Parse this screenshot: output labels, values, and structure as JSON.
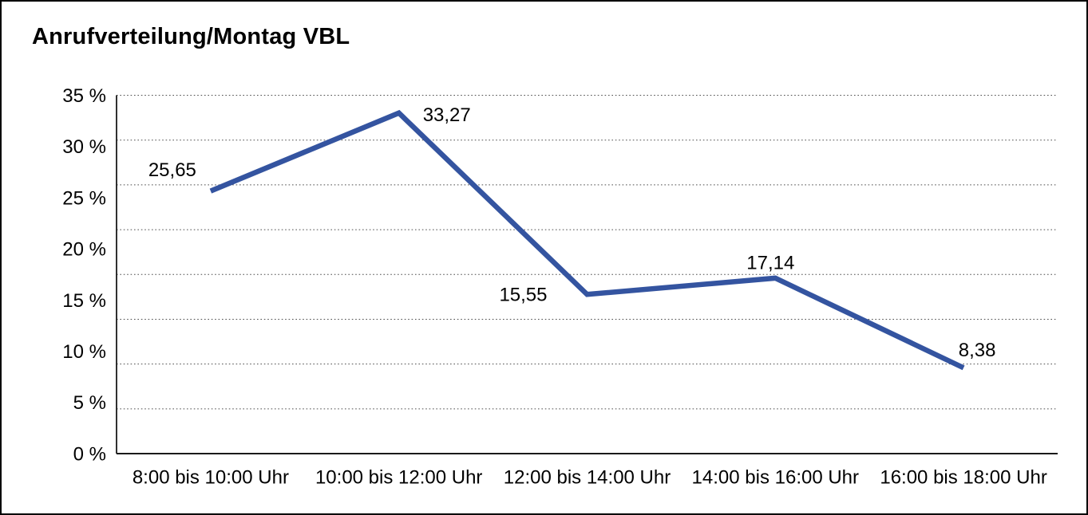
{
  "page": {
    "title": "Anrufverteilung/Montag VBL"
  },
  "chart_data": {
    "type": "line",
    "title": "Anrufverteilung/Montag VBL",
    "categories": [
      "8:00 bis 10:00 Uhr",
      "10:00 bis 12:00 Uhr",
      "12:00 bis 14:00 Uhr",
      "14:00 bis 16:00 Uhr",
      "16:00 bis 18:00 Uhr"
    ],
    "values": [
      25.65,
      33.27,
      15.55,
      17.14,
      8.38
    ],
    "value_labels": [
      "25,65",
      "33,27",
      "15,55",
      "17,14",
      "8,38"
    ],
    "xlabel": "",
    "ylabel": "",
    "ylim": [
      0,
      35
    ],
    "ytick_step": 5,
    "ytick_labels": [
      "35 %",
      "30 %",
      "25 %",
      "20 %",
      "15 %",
      "10 %",
      "5 %",
      "0 %"
    ],
    "grid": "horizontal-dotted",
    "grid_divisions": 8,
    "legend_position": "none",
    "line_color": "#3454A0",
    "axis_color": "#1a1a1a",
    "grid_color": "#4d4d4d",
    "label_color": "#000000"
  }
}
